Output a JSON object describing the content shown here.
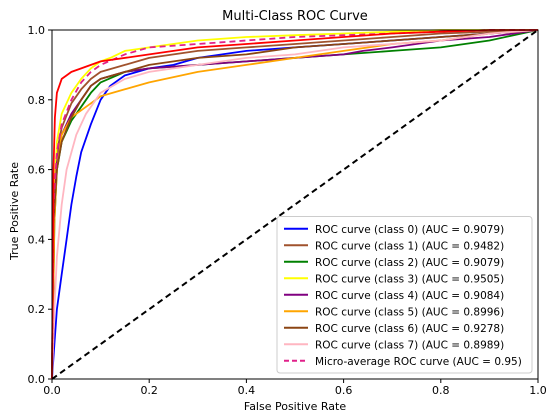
{
  "chart_data": {
    "type": "line",
    "title": "Multi-Class ROC Curve",
    "xlabel": "False Positive Rate",
    "ylabel": "True Positive Rate",
    "xlim": [
      0,
      1
    ],
    "ylim": [
      0,
      1
    ],
    "xticks": [
      "0.0",
      "0.2",
      "0.4",
      "0.6",
      "0.8",
      "1.0"
    ],
    "yticks": [
      "0.0",
      "0.2",
      "0.4",
      "0.6",
      "0.8",
      "1.0"
    ],
    "grid": false,
    "legend_position": "lower-right",
    "series": [
      {
        "name": "ROC curve (class 0) (AUC = 0.9079)",
        "color": "#0000ff",
        "dash": "solid",
        "x": [
          0,
          0.005,
          0.01,
          0.02,
          0.03,
          0.04,
          0.05,
          0.06,
          0.08,
          0.1,
          0.12,
          0.15,
          0.2,
          0.25,
          0.3,
          0.4,
          0.5,
          0.6,
          0.7,
          0.8,
          0.9,
          1.0
        ],
        "y": [
          0,
          0.1,
          0.2,
          0.3,
          0.4,
          0.5,
          0.58,
          0.65,
          0.73,
          0.8,
          0.84,
          0.87,
          0.89,
          0.9,
          0.92,
          0.94,
          0.95,
          0.96,
          0.97,
          0.98,
          0.99,
          1.0
        ]
      },
      {
        "name": "ROC curve (class 1) (AUC = 0.9482)",
        "color": "#a0522d",
        "dash": "solid",
        "x": [
          0,
          0.003,
          0.01,
          0.02,
          0.04,
          0.06,
          0.08,
          0.1,
          0.15,
          0.2,
          0.3,
          0.4,
          0.5,
          0.6,
          0.7,
          0.8,
          0.9,
          1.0
        ],
        "y": [
          0,
          0.5,
          0.65,
          0.72,
          0.79,
          0.83,
          0.86,
          0.88,
          0.9,
          0.92,
          0.94,
          0.95,
          0.96,
          0.97,
          0.98,
          0.99,
          0.995,
          1.0
        ]
      },
      {
        "name": "ROC curve (class 2) (AUC = 0.9079)",
        "color": "#008000",
        "dash": "solid",
        "x": [
          0,
          0.005,
          0.01,
          0.02,
          0.04,
          0.06,
          0.08,
          0.1,
          0.15,
          0.2,
          0.3,
          0.4,
          0.5,
          0.6,
          0.7,
          0.8,
          0.9,
          1.0
        ],
        "y": [
          0,
          0.45,
          0.6,
          0.68,
          0.74,
          0.78,
          0.82,
          0.85,
          0.88,
          0.89,
          0.9,
          0.91,
          0.92,
          0.93,
          0.94,
          0.95,
          0.97,
          1.0
        ]
      },
      {
        "name": "ROC curve (class 3) (AUC = 0.9505)",
        "color": "#ffff00",
        "dash": "solid",
        "x": [
          0,
          0.005,
          0.01,
          0.02,
          0.04,
          0.06,
          0.08,
          0.1,
          0.12,
          0.15,
          0.2,
          0.3,
          0.4,
          0.5,
          0.6,
          0.7,
          0.8,
          0.9,
          1.0
        ],
        "y": [
          0,
          0.55,
          0.68,
          0.76,
          0.82,
          0.86,
          0.89,
          0.91,
          0.92,
          0.94,
          0.95,
          0.97,
          0.98,
          0.985,
          0.99,
          0.995,
          1.0,
          1.0,
          1.0
        ]
      },
      {
        "name": "ROC curve (class 4) (AUC = 0.9084)",
        "color": "#800080",
        "dash": "solid",
        "x": [
          0,
          0.005,
          0.01,
          0.02,
          0.04,
          0.06,
          0.08,
          0.1,
          0.15,
          0.2,
          0.3,
          0.4,
          0.5,
          0.6,
          0.64,
          0.7,
          0.8,
          0.9,
          1.0
        ],
        "y": [
          0,
          0.5,
          0.62,
          0.7,
          0.76,
          0.8,
          0.84,
          0.86,
          0.88,
          0.89,
          0.9,
          0.91,
          0.92,
          0.93,
          0.94,
          0.95,
          0.97,
          0.98,
          1.0
        ]
      },
      {
        "name": "ROC curve (class 5) (AUC = 0.8996)",
        "color": "#ffa500",
        "dash": "solid",
        "x": [
          0,
          0.005,
          0.01,
          0.02,
          0.04,
          0.06,
          0.08,
          0.1,
          0.15,
          0.2,
          0.3,
          0.4,
          0.5,
          0.6,
          0.7,
          0.8,
          0.9,
          1.0
        ],
        "y": [
          0,
          0.45,
          0.6,
          0.7,
          0.75,
          0.77,
          0.79,
          0.81,
          0.83,
          0.85,
          0.88,
          0.9,
          0.92,
          0.94,
          0.96,
          0.97,
          0.99,
          1.0
        ]
      },
      {
        "name": "ROC curve (class 6) (AUC = 0.9278)",
        "color": "#8b4513",
        "dash": "solid",
        "x": [
          0,
          0.003,
          0.01,
          0.02,
          0.04,
          0.06,
          0.08,
          0.1,
          0.15,
          0.2,
          0.3,
          0.4,
          0.5,
          0.6,
          0.7,
          0.8,
          0.9,
          1.0
        ],
        "y": [
          0,
          0.45,
          0.6,
          0.68,
          0.75,
          0.8,
          0.84,
          0.86,
          0.88,
          0.9,
          0.92,
          0.93,
          0.95,
          0.96,
          0.97,
          0.98,
          0.99,
          1.0
        ]
      },
      {
        "name": "ROC curve (class 7) (AUC = 0.8989)",
        "color": "#ffb6c1",
        "dash": "solid",
        "x": [
          0,
          0.005,
          0.01,
          0.02,
          0.03,
          0.05,
          0.07,
          0.1,
          0.15,
          0.2,
          0.3,
          0.4,
          0.5,
          0.6,
          0.7,
          0.8,
          0.9,
          1.0
        ],
        "y": [
          0,
          0.2,
          0.35,
          0.5,
          0.6,
          0.7,
          0.76,
          0.82,
          0.86,
          0.88,
          0.9,
          0.92,
          0.93,
          0.95,
          0.96,
          0.97,
          0.99,
          1.0
        ]
      },
      {
        "name": "Micro-average ROC curve (AUC = 0.95)",
        "color": "#e0218a",
        "dash": "dashed",
        "x": [
          0,
          0.003,
          0.01,
          0.02,
          0.04,
          0.06,
          0.08,
          0.1,
          0.15,
          0.2,
          0.3,
          0.4,
          0.5,
          0.6,
          0.7,
          0.8,
          0.9,
          1.0
        ],
        "y": [
          0,
          0.5,
          0.65,
          0.73,
          0.8,
          0.85,
          0.88,
          0.9,
          0.93,
          0.95,
          0.96,
          0.97,
          0.98,
          0.985,
          0.99,
          0.995,
          1.0,
          1.0
        ]
      },
      {
        "name": "",
        "color": "#ff0000",
        "dash": "solid",
        "x": [
          0,
          0.003,
          0.006,
          0.01,
          0.02,
          0.03,
          0.04,
          0.06,
          0.08,
          0.1,
          0.2,
          0.3,
          0.4,
          0.5,
          0.6,
          0.7,
          0.8,
          0.9,
          1.0
        ],
        "y": [
          0,
          0.6,
          0.75,
          0.82,
          0.86,
          0.87,
          0.88,
          0.89,
          0.9,
          0.91,
          0.93,
          0.95,
          0.96,
          0.97,
          0.98,
          0.99,
          0.995,
          1.0,
          1.0
        ]
      },
      {
        "name": "",
        "color": "#000000",
        "dash": "dashed",
        "x": [
          0,
          1
        ],
        "y": [
          0,
          1
        ]
      }
    ]
  }
}
